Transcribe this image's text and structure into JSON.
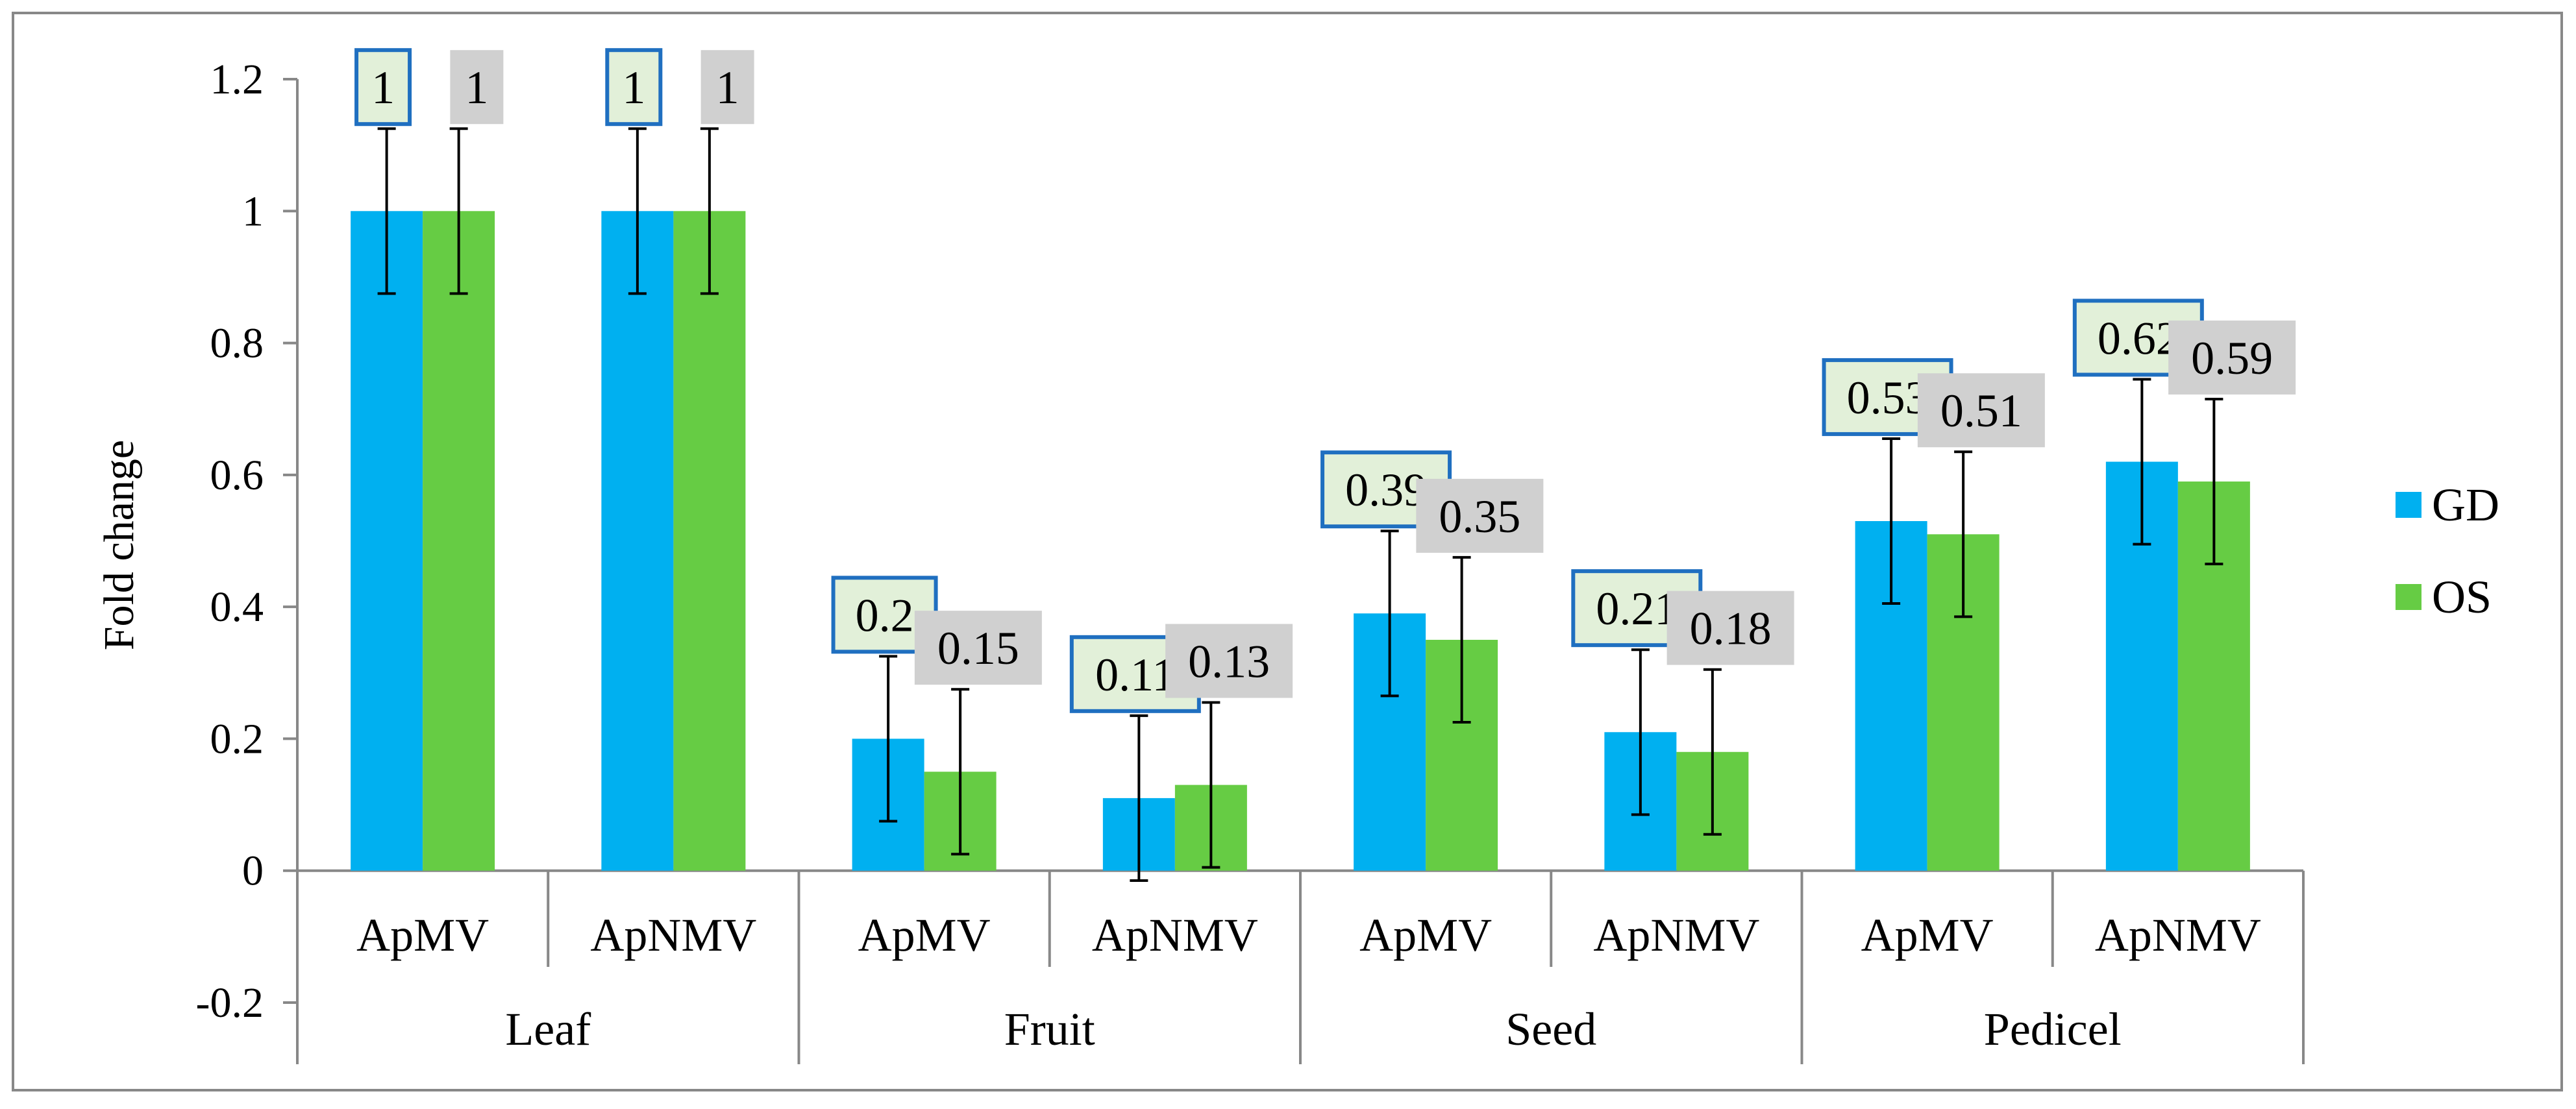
{
  "chart_data": {
    "type": "bar",
    "title": "",
    "xlabel": "",
    "ylabel": "Fold change",
    "ylim": [
      -0.2,
      1.2
    ],
    "yticks": [
      -0.2,
      0,
      0.2,
      0.4,
      0.6,
      0.8,
      1,
      1.2
    ],
    "ytick_labels": [
      "-0.2",
      "0",
      "0.2",
      "0.4",
      "0.6",
      "0.8",
      "1",
      "1.2"
    ],
    "groups": [
      {
        "name": "Leaf",
        "categories": [
          "ApMV",
          "ApNMV"
        ]
      },
      {
        "name": "Fruit",
        "categories": [
          "ApMV",
          "ApNMV"
        ]
      },
      {
        "name": "Seed",
        "categories": [
          "ApMV",
          "ApNMV"
        ]
      },
      {
        "name": "Pedicel",
        "categories": [
          "ApMV",
          "ApNMV"
        ]
      }
    ],
    "categories": [
      "ApMV",
      "ApNMV",
      "ApMV",
      "ApNMV",
      "ApMV",
      "ApNMV",
      "ApMV",
      "ApNMV"
    ],
    "series": [
      {
        "name": "GD",
        "color": "#00B0F0",
        "values": [
          1,
          1,
          0.2,
          0.11,
          0.39,
          0.21,
          0.53,
          0.62
        ],
        "labels": [
          "1",
          "1",
          "0.2",
          "0.11",
          "0.39",
          "0.21",
          "0.53",
          "0.62"
        ],
        "errors": [
          0.125,
          0.125,
          0.125,
          0.125,
          0.125,
          0.125,
          0.125,
          0.125
        ]
      },
      {
        "name": "OS",
        "color": "#66CC44",
        "values": [
          1,
          1,
          0.15,
          0.13,
          0.35,
          0.18,
          0.51,
          0.59
        ],
        "labels": [
          "1",
          "1",
          "0.15",
          "0.13",
          "0.35",
          "0.18",
          "0.51",
          "0.59"
        ],
        "errors": [
          0.125,
          0.125,
          0.125,
          0.125,
          0.125,
          0.125,
          0.125,
          0.125
        ]
      }
    ],
    "legend": {
      "position": "right",
      "entries": [
        "GD",
        "OS"
      ]
    },
    "grid": false
  }
}
